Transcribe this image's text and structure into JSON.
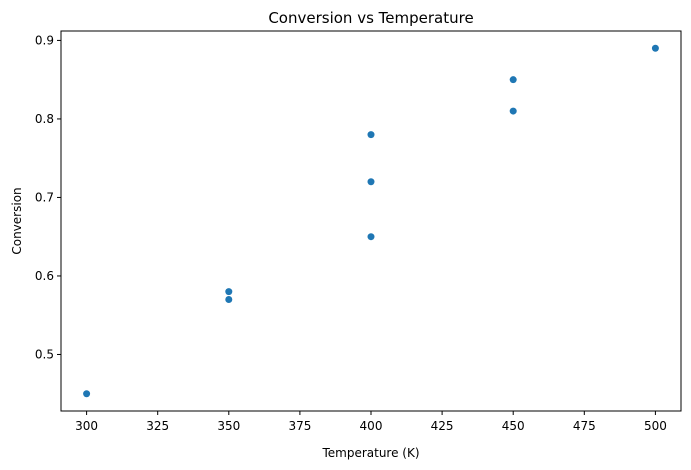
{
  "chart_data": {
    "type": "scatter",
    "title": "Conversion vs Temperature",
    "xlabel": "Temperature (K)",
    "ylabel": "Conversion",
    "xlim": [
      291,
      509
    ],
    "ylim": [
      0.428,
      0.912
    ],
    "xticks": [
      300,
      325,
      350,
      375,
      400,
      425,
      450,
      475,
      500
    ],
    "yticks": [
      0.5,
      0.6,
      0.7,
      0.8,
      0.9
    ],
    "grid": false,
    "legend": "none",
    "marker_color": "#1f77b4",
    "points": [
      {
        "x": 300,
        "y": 0.45
      },
      {
        "x": 350,
        "y": 0.57
      },
      {
        "x": 350,
        "y": 0.58
      },
      {
        "x": 400,
        "y": 0.65
      },
      {
        "x": 400,
        "y": 0.72
      },
      {
        "x": 400,
        "y": 0.78
      },
      {
        "x": 450,
        "y": 0.81
      },
      {
        "x": 450,
        "y": 0.85
      },
      {
        "x": 500,
        "y": 0.89
      }
    ]
  }
}
